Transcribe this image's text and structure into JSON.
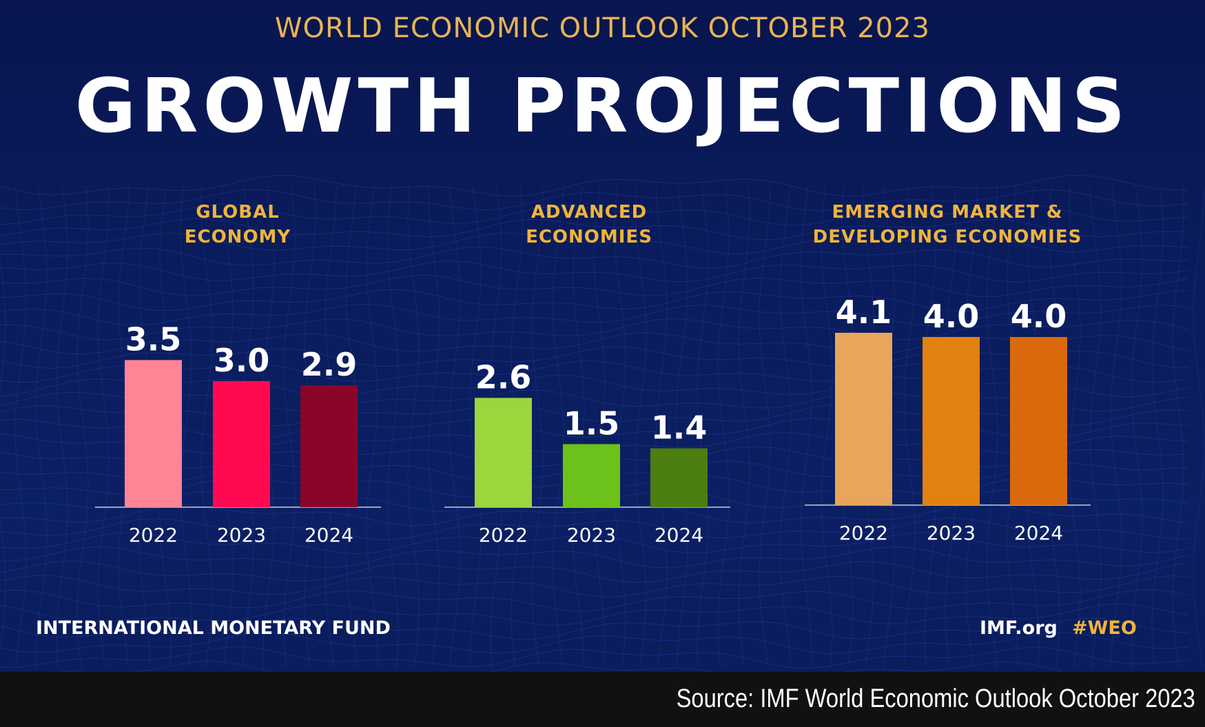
{
  "header": {
    "supertitle": "WORLD ECONOMIC OUTLOOK OCTOBER 2023",
    "title": "GROWTH PROJECTIONS"
  },
  "colors": {
    "background": "#0b1a55",
    "accent": "#f0b43c",
    "text": "#ffffff"
  },
  "chart_data": [
    {
      "type": "bar",
      "title_lines": [
        "GLOBAL",
        "ECONOMY"
      ],
      "categories": [
        "2022",
        "2023",
        "2024"
      ],
      "values": [
        3.5,
        3.0,
        2.9
      ],
      "value_labels": [
        "3.5",
        "3.0",
        "2.9"
      ],
      "bar_colors": [
        "#ff8496",
        "#ff0a50",
        "#8a0528"
      ],
      "ylim": [
        0,
        4.1
      ],
      "grid": false
    },
    {
      "type": "bar",
      "title_lines": [
        "ADVANCED",
        "ECONOMIES"
      ],
      "categories": [
        "2022",
        "2023",
        "2024"
      ],
      "values": [
        2.6,
        1.5,
        1.4
      ],
      "value_labels": [
        "2.6",
        "1.5",
        "1.4"
      ],
      "bar_colors": [
        "#9ad63c",
        "#6cc21a",
        "#4c7e12"
      ],
      "ylim": [
        0,
        4.1
      ],
      "grid": false
    },
    {
      "type": "bar",
      "title_lines": [
        "EMERGING MARKET &",
        "DEVELOPING ECONOMIES"
      ],
      "categories": [
        "2022",
        "2023",
        "2024"
      ],
      "values": [
        4.1,
        4.0,
        4.0
      ],
      "value_labels": [
        "4.1",
        "4.0",
        "4.0"
      ],
      "bar_colors": [
        "#e9a55c",
        "#e2810f",
        "#d9690c"
      ],
      "ylim": [
        0,
        4.1
      ],
      "grid": false
    }
  ],
  "footer": {
    "organization": "INTERNATIONAL MONETARY FUND",
    "site": "IMF.org",
    "hashtag": "#WEO"
  },
  "source": {
    "text": "Source: IMF World Economic Outlook October 2023"
  }
}
